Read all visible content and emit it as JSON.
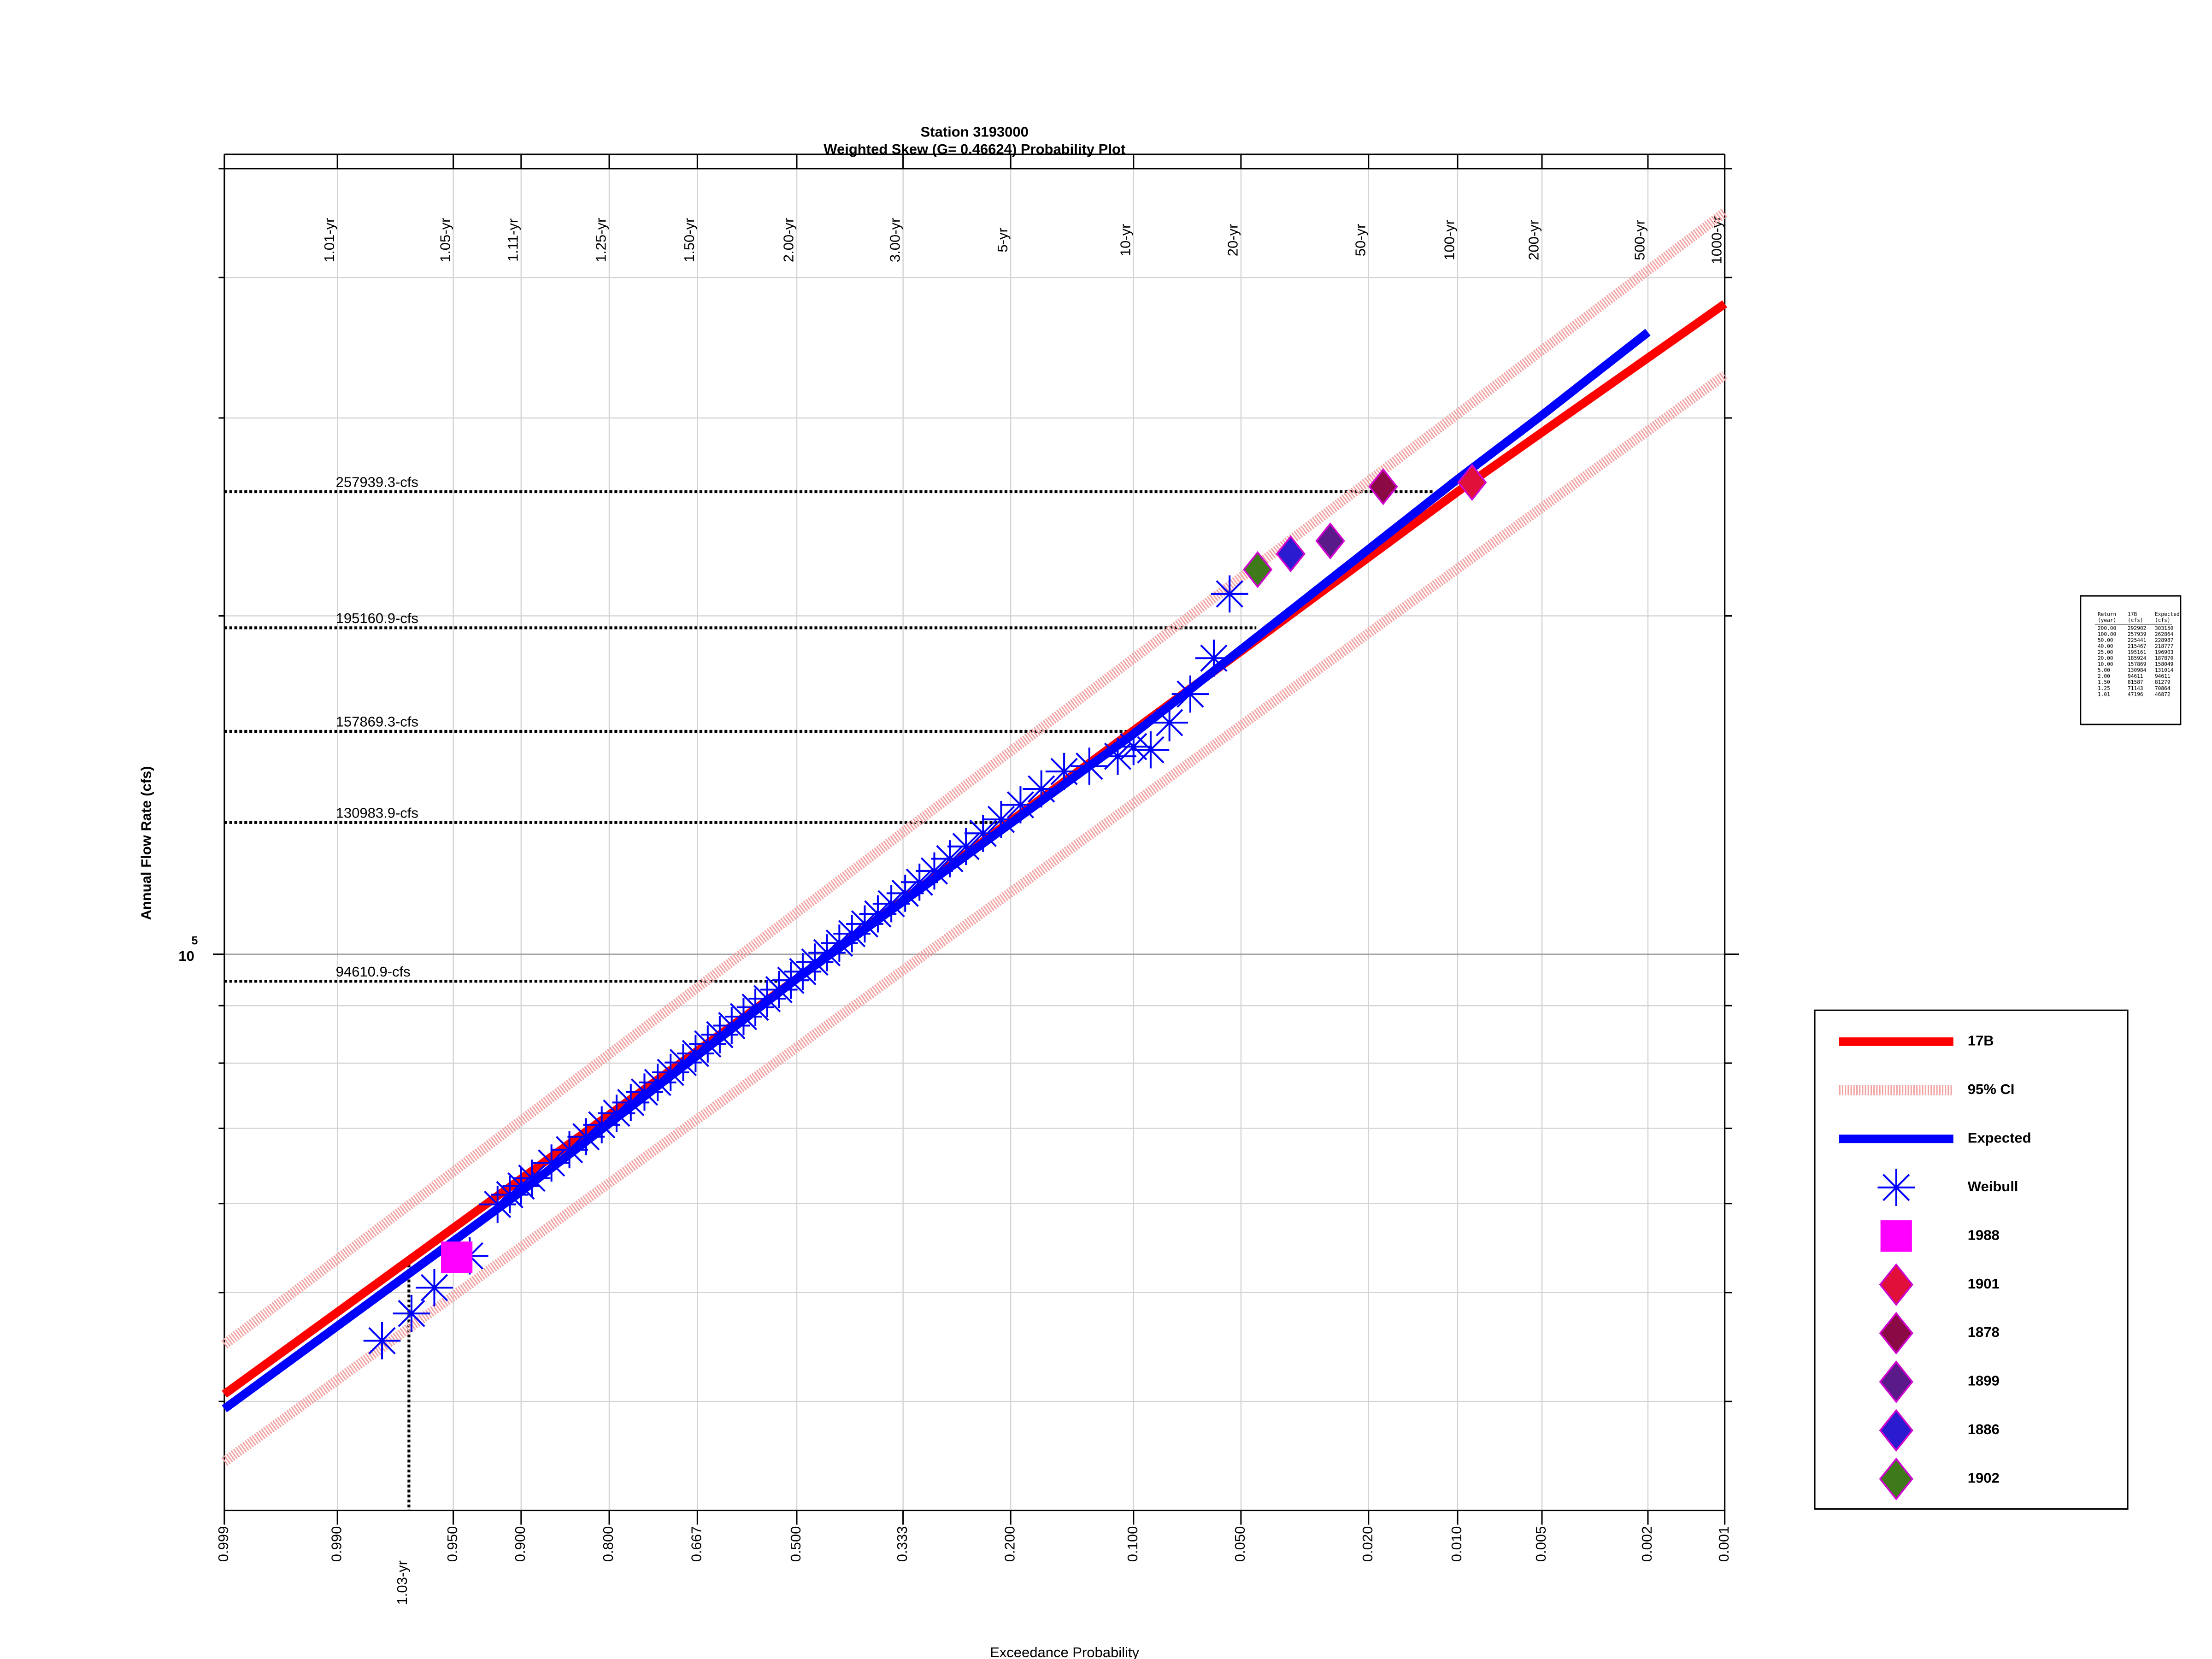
{
  "chart_data": {
    "type": "probability",
    "title": "Station 3193000",
    "subtitle": "Weighted Skew (G= 0.46624) Probability Plot",
    "x_label": "Exceedance Probability",
    "y_label": "Annual Flow Rate (cfs)",
    "x_scale": "pearson3",
    "skew": 0.46624,
    "y_scale": "log",
    "grid": true,
    "xlim": [
      0.999,
      0.001
    ],
    "ylim": [
      32000,
      500000
    ],
    "xticks": [
      {
        "value": 0.999,
        "label": "0.999"
      },
      {
        "value": 0.99,
        "label": "0.990"
      },
      {
        "value": 0.95,
        "label": "0.950"
      },
      {
        "value": 0.9,
        "label": "0.900"
      },
      {
        "value": 0.8,
        "label": "0.800"
      },
      {
        "value": 0.667,
        "label": "0.667"
      },
      {
        "value": 0.5,
        "label": "0.500"
      },
      {
        "value": 0.333,
        "label": "0.333"
      },
      {
        "value": 0.2,
        "label": "0.200"
      },
      {
        "value": 0.1,
        "label": "0.100"
      },
      {
        "value": 0.05,
        "label": "0.050"
      },
      {
        "value": 0.02,
        "label": "0.020"
      },
      {
        "value": 0.01,
        "label": "0.010"
      },
      {
        "value": 0.005,
        "label": "0.005"
      },
      {
        "value": 0.002,
        "label": "0.002"
      },
      {
        "value": 0.001,
        "label": "0.001"
      }
    ],
    "return_periods": [
      null,
      "1.01-yr",
      "1.05-yr",
      "1.11-yr",
      "1.25-yr",
      "1.50-yr",
      "2.00-yr",
      "3.00-yr",
      "5-yr",
      "10-yr",
      "20-yr",
      "50-yr",
      "100-yr",
      "200-yr",
      "500-yr",
      "1000-yr"
    ],
    "yticks": [
      {
        "value": 100000,
        "label": "10",
        "exponent": "5"
      }
    ],
    "yminor": [
      40000,
      50000,
      60000,
      70000,
      80000,
      90000,
      200000,
      300000,
      400000,
      500000
    ],
    "series": [
      {
        "name": "17B",
        "color": "#ff0000",
        "marker": "line",
        "x": [
          0.999,
          0.5,
          0.01,
          0.001
        ],
        "values": [
          40600,
          95100,
          257939.3,
          379000
        ]
      },
      {
        "name": "95% CI",
        "color": "#f2a4a4",
        "marker": "band",
        "x": [
          0.999,
          0.5,
          0.001
        ],
        "values": [
          44950,
          108900,
          457100
        ],
        "lower": [
          35350,
          82650,
          327500
        ]
      },
      {
        "name": "Expected",
        "color": "#0000ff",
        "marker": "line",
        "x": [
          0.999,
          0.9,
          0.5,
          0.1,
          0.01,
          0.005,
          0.002
        ],
        "values": [
          39400,
          61500,
          95100,
          157000,
          264600,
          301700,
          357600
        ]
      },
      {
        "name": "Weibull",
        "color": "#0000ff",
        "marker": "star",
        "x": [
          0.98,
          0.97,
          0.96,
          0.94,
          0.92,
          0.91,
          0.9,
          0.89,
          0.87,
          0.85,
          0.83,
          0.81,
          0.79,
          0.77,
          0.75,
          0.73,
          0.71,
          0.69,
          0.67,
          0.65,
          0.63,
          0.61,
          0.59,
          0.57,
          0.55,
          0.53,
          0.51,
          0.49,
          0.47,
          0.45,
          0.43,
          0.41,
          0.39,
          0.37,
          0.35,
          0.33,
          0.31,
          0.29,
          0.27,
          0.25,
          0.23,
          0.21,
          0.19,
          0.17,
          0.15,
          0.13,
          0.11,
          0.1,
          0.09,
          0.08,
          0.07,
          0.06,
          0.054
        ],
        "values": [
          45300,
          47900,
          50500,
          53900,
          59900,
          61100,
          62200,
          63200,
          65200,
          67000,
          68800,
          70500,
          72200,
          73800,
          75400,
          76900,
          78500,
          80100,
          81600,
          83200,
          84800,
          86400,
          88000,
          89700,
          91300,
          93000,
          94800,
          96500,
          98400,
          100300,
          102300,
          104300,
          106400,
          108600,
          110900,
          113300,
          115900,
          118600,
          121600,
          124700,
          128100,
          131800,
          135800,
          140300,
          145400,
          147000,
          150000,
          153000,
          152000,
          160700,
          170400,
          183400,
          209200
        ]
      },
      {
        "name": "1988",
        "color": "#ff00ff",
        "marker": "square",
        "x": [
          0.948
        ],
        "values": [
          53750
        ]
      },
      {
        "name": "1901",
        "color": "#e0103a",
        "marker": "diamond",
        "x": [
          0.0089
        ],
        "values": [
          262900
        ]
      },
      {
        "name": "1878",
        "color": "#8b0a45",
        "marker": "diamond",
        "x": [
          0.0179
        ],
        "values": [
          260600
        ]
      },
      {
        "name": "1899",
        "color": "#5a1a8a",
        "marker": "diamond",
        "x": [
          0.0266
        ],
        "values": [
          233200
        ]
      },
      {
        "name": "1886",
        "color": "#2a1ad0",
        "marker": "diamond",
        "x": [
          0.0354
        ],
        "values": [
          227100
        ]
      },
      {
        "name": "1902",
        "color": "#3f7a1a",
        "marker": "diamond",
        "x": [
          0.0446
        ],
        "values": [
          219900
        ]
      }
    ],
    "hlines": [
      {
        "value": 257939.3,
        "label": "257939.3-cfs",
        "x_end": 0.012
      },
      {
        "value": 195160.9,
        "label": "195160.9-cfs",
        "x_end": 0.045
      },
      {
        "value": 157869.3,
        "label": "157869.3-cfs",
        "x_end": 0.095
      },
      {
        "value": 130983.9,
        "label": "130983.9-cfs",
        "x_end": 0.21
      },
      {
        "value": 94610.9,
        "label": "94610.9-cfs",
        "x_end": 0.53
      }
    ],
    "vline": {
      "value": 0.971,
      "label": "1.03-yr",
      "y_end": 53500
    },
    "table": {
      "header": [
        [
          "Return",
          "17B",
          "Expected"
        ],
        [
          "(year)",
          "(cfs)",
          "(cfs)"
        ]
      ],
      "rows": [
        [
          "200.00",
          "292902",
          "303150"
        ],
        [
          "100.00",
          "257939",
          "262864"
        ],
        [
          "50.00",
          "225441",
          "228987"
        ],
        [
          "40.00",
          "215467",
          "218777"
        ],
        [
          "25.00",
          "195161",
          "196903"
        ],
        [
          "20.00",
          "185924",
          "187870"
        ],
        [
          "10.00",
          "157869",
          "158049"
        ],
        [
          "5.00",
          "130984",
          "131014"
        ],
        [
          "2.00",
          "94611",
          "94611"
        ],
        [
          "1.50",
          "81587",
          "81279"
        ],
        [
          "1.25",
          "71143",
          "70864"
        ],
        [
          "1.01",
          "47196",
          "46872"
        ]
      ]
    }
  }
}
